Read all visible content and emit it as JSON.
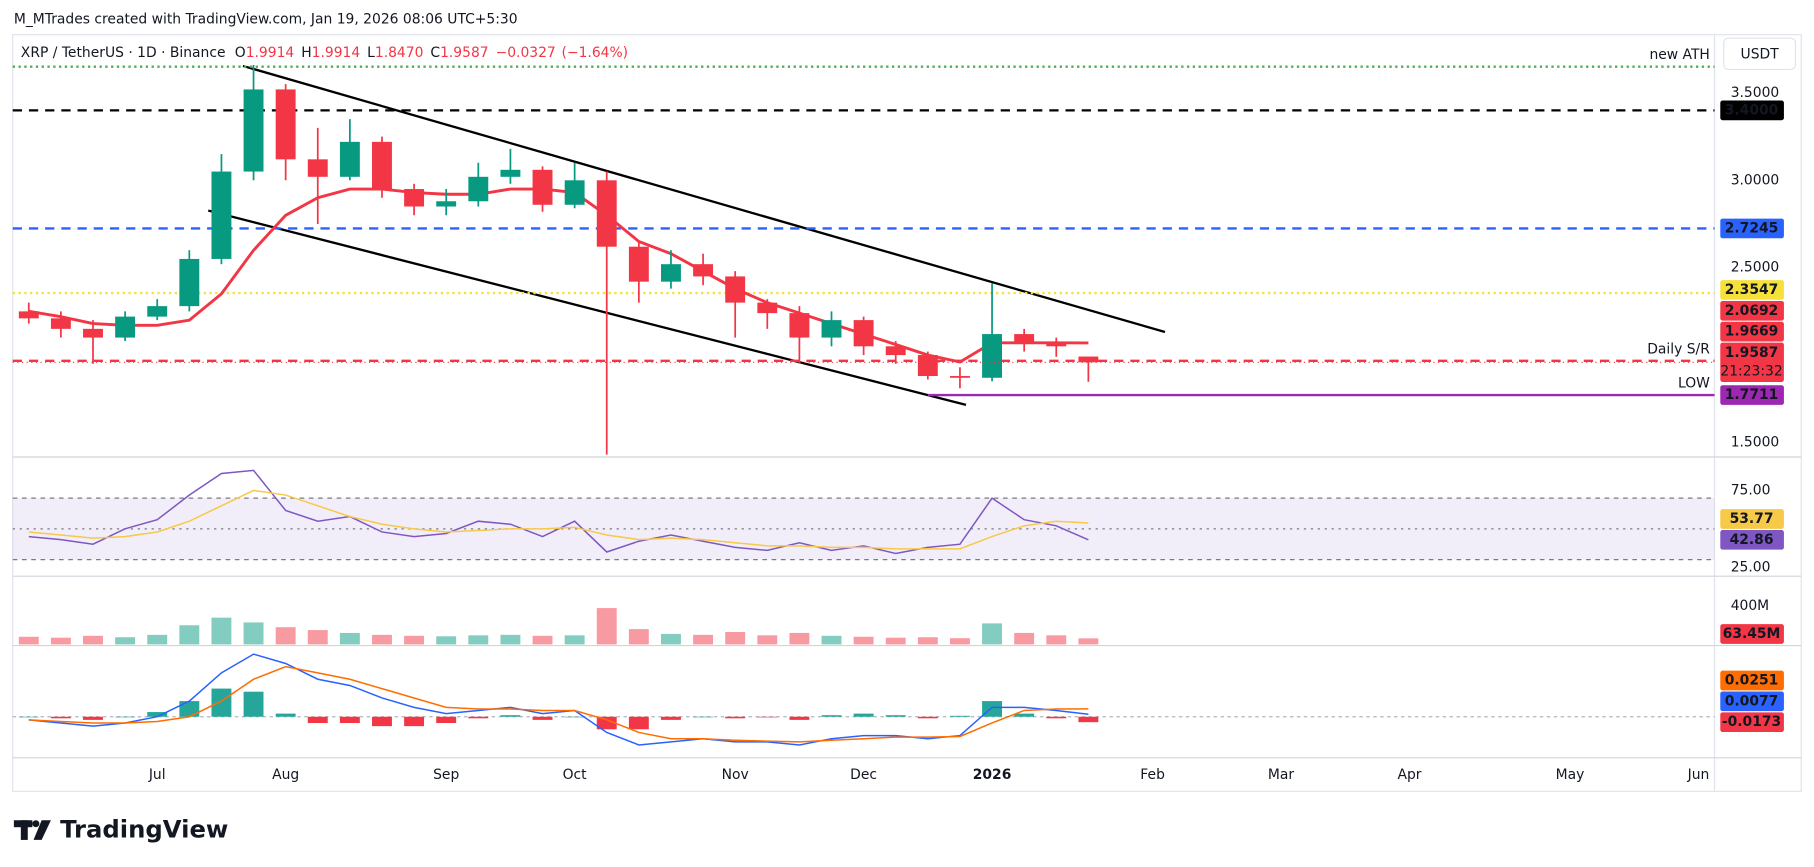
{
  "header": {
    "author": "M_MTrades created with TradingView.com, Jan 19, 2026 08:06 UTC+5:30",
    "symbol": "XRP / TetherUS · 1D · Binance",
    "ohlc": [
      {
        "key": "O",
        "value": 1.9914
      },
      {
        "key": "H",
        "value": 1.9914
      },
      {
        "key": "L",
        "value": {
          "value": 1.847,
          "label": "1.8470"
        }
      },
      {
        "key": "C",
        "value": 1.9587
      }
    ],
    "change": {
      "value": -0.0327,
      "label": "−0.0327"
    },
    "change_pct": {
      "value": -1.64,
      "label": "(−1.64%)"
    },
    "currency": "USDT"
  },
  "chart_data": [
    {
      "type": "candlestick",
      "categories": [
        null,
        null,
        null,
        null,
        "Jul",
        null,
        null,
        null,
        "Aug",
        null,
        null,
        null,
        null,
        "Sep",
        null,
        null,
        null,
        "Oct",
        null,
        null,
        null,
        null,
        "Nov",
        null,
        null,
        null,
        "Dec",
        null,
        null,
        null,
        "2026",
        null,
        null,
        null,
        null,
        "Feb",
        null,
        null,
        null,
        "Mar",
        null,
        null,
        null,
        "Apr",
        null,
        null,
        null,
        null,
        "May",
        null,
        null,
        null,
        "Jun"
      ],
      "open": [
        2.25,
        2.21,
        2.15,
        2.1,
        2.22,
        2.28,
        2.55,
        3.05,
        3.52,
        3.12,
        3.02,
        3.22,
        2.95,
        2.85,
        2.88,
        3.02,
        3.06,
        2.86,
        3.0,
        2.62,
        2.42,
        2.52,
        2.45,
        2.3,
        2.24,
        2.1,
        2.2,
        2.05,
        2.0,
        1.88,
        1.87,
        2.12,
        2.07,
        1.9914,
        null,
        null,
        null,
        null,
        null,
        null,
        null,
        null,
        null,
        null,
        null,
        null,
        null,
        null,
        null,
        null,
        null,
        null,
        null
      ],
      "high": [
        2.3,
        2.25,
        2.2,
        2.25,
        2.32,
        2.6,
        3.15,
        3.66,
        3.55,
        3.3,
        3.35,
        3.25,
        2.98,
        2.95,
        3.1,
        3.18,
        3.08,
        3.1,
        3.05,
        2.65,
        2.6,
        2.58,
        2.48,
        2.32,
        2.28,
        2.25,
        2.22,
        2.08,
        2.02,
        1.93,
        2.41,
        2.15,
        2.1,
        1.9914,
        null,
        null,
        null,
        null,
        null,
        null,
        null,
        null,
        null,
        null,
        null,
        null,
        null,
        null,
        null,
        null,
        null,
        null,
        null
      ],
      "low": [
        2.18,
        2.1,
        1.95,
        2.08,
        2.2,
        2.25,
        2.52,
        3.0,
        3.0,
        2.75,
        3.0,
        2.9,
        2.8,
        2.8,
        2.85,
        2.98,
        2.82,
        2.84,
        1.43,
        2.3,
        2.38,
        2.4,
        2.1,
        2.15,
        1.95,
        2.05,
        2.0,
        1.95,
        1.86,
        1.81,
        1.85,
        2.02,
        1.99,
        1.847,
        null,
        null,
        null,
        null,
        null,
        null,
        null,
        null,
        null,
        null,
        null,
        null,
        null,
        null,
        null,
        null,
        null,
        null,
        null
      ],
      "close": [
        2.21,
        2.15,
        2.1,
        2.22,
        2.28,
        2.55,
        3.05,
        3.52,
        3.12,
        3.02,
        3.22,
        2.95,
        2.85,
        2.88,
        3.02,
        3.06,
        2.86,
        3.0,
        2.62,
        2.42,
        2.52,
        2.45,
        2.3,
        2.24,
        2.1,
        2.2,
        2.05,
        2.0,
        1.88,
        1.87,
        2.12,
        2.07,
        2.05,
        1.9587,
        null,
        null,
        null,
        null,
        null,
        null,
        null,
        null,
        null,
        null,
        null,
        null,
        null,
        null,
        null,
        null,
        null,
        null,
        null
      ],
      "up_color": "#089981",
      "down_color": "#f23645",
      "series": [
        {
          "color": "#f23645",
          "values": [
            2.25,
            2.22,
            2.18,
            2.17,
            2.17,
            2.2,
            2.35,
            2.6,
            2.8,
            2.9,
            2.95,
            2.95,
            2.93,
            2.92,
            2.92,
            2.95,
            2.95,
            2.93,
            2.8,
            2.65,
            2.58,
            2.48,
            2.38,
            2.3,
            2.24,
            2.18,
            2.12,
            2.06,
            2.0,
            1.96,
            2.07,
            2.07,
            2.07,
            2.0692,
            null,
            null,
            null,
            null,
            null,
            null,
            null,
            null,
            null,
            null,
            null,
            null,
            null,
            null,
            null,
            null,
            null,
            null,
            null
          ]
        }
      ],
      "countdown": "21:23:32",
      "ylim": [
        1.43,
        3.8
      ],
      "yticks": [
        {
          "value": 3.5,
          "label": "3.5000"
        },
        {
          "value": 3.0,
          "label": "3.0000"
        },
        {
          "value": 2.5,
          "label": "2.5000"
        },
        {
          "value": 1.5,
          "label": "1.5000"
        }
      ],
      "levels": [
        {
          "value": 3.65,
          "text": "new ATH",
          "color": "#4caf50",
          "style": "dotted",
          "tag": false
        },
        {
          "value": 3.4,
          "label": "3.4000",
          "color": "#000000",
          "style": "dashed",
          "tag": true
        },
        {
          "value": 2.7245,
          "color": "#2962ff",
          "style": "dashed",
          "tag": true
        },
        {
          "value": 2.3547,
          "color": "#f5e13a",
          "style": "dotted",
          "tag": true
        },
        {
          "value": 1.9669,
          "text": "Daily S/R",
          "color": "#f23645",
          "style": "dashed",
          "tag": true
        },
        {
          "value": 1.7711,
          "text": "LOW",
          "color": "#9c27b0",
          "style": "solid",
          "tag": true
        }
      ]
    },
    {
      "type": "line",
      "series": [
        {
          "color": "#7e57c2",
          "values": [
            45,
            43,
            40,
            50,
            56,
            72,
            86,
            88,
            62,
            55,
            58,
            48,
            45,
            47,
            55,
            53,
            45,
            55,
            35,
            42,
            46,
            42,
            38,
            36,
            41,
            36,
            39,
            34,
            38,
            40,
            70,
            56,
            52,
            42.86,
            null,
            null,
            null,
            null,
            null,
            null,
            null,
            null,
            null,
            null,
            null,
            null,
            null,
            null,
            null,
            null,
            null,
            null,
            null
          ]
        },
        {
          "color": "#f7c948",
          "values": [
            48,
            46,
            44,
            45,
            48,
            55,
            65,
            75,
            72,
            65,
            58,
            53,
            50,
            48,
            49,
            50,
            50,
            51,
            46,
            43,
            44,
            43,
            41,
            39,
            39,
            38,
            38,
            37,
            37,
            37,
            45,
            52,
            55,
            53.77,
            null,
            null,
            null,
            null,
            null,
            null,
            null,
            null,
            null,
            null,
            null,
            null,
            null,
            null,
            null,
            null,
            null,
            null,
            null
          ]
        }
      ],
      "ylim": [
        20,
        96
      ],
      "yticks": [
        {
          "value": 75,
          "label": "75.00"
        },
        {
          "value": 25,
          "label": "25.00"
        }
      ],
      "band": [
        30,
        70
      ],
      "midline": 50
    },
    {
      "type": "bar",
      "values": [
        80,
        70,
        90,
        75,
        100,
        200,
        280,
        230,
        180,
        150,
        120,
        100,
        90,
        85,
        95,
        100,
        90,
        95,
        380,
        160,
        110,
        100,
        130,
        95,
        120,
        90,
        80,
        70,
        75,
        65,
        220,
        120,
        95,
        63.45,
        null,
        null,
        null,
        null,
        null,
        null,
        null,
        null,
        null,
        null,
        null,
        null,
        null,
        null,
        null,
        null,
        null,
        null,
        null
      ],
      "value_labels": [
        null,
        null,
        null,
        null,
        null,
        null,
        null,
        null,
        null,
        null,
        null,
        null,
        null,
        null,
        null,
        null,
        null,
        null,
        null,
        null,
        null,
        null,
        null,
        null,
        null,
        null,
        null,
        null,
        null,
        null,
        null,
        null,
        null,
        "63.45M",
        null,
        null,
        null,
        null,
        null,
        null,
        null,
        null,
        null,
        null,
        null,
        null,
        null,
        null,
        null,
        null,
        null,
        null,
        null
      ],
      "up_color": "rgba(8,153,129,0.5)",
      "down_color": "rgba(242,54,69,0.5)",
      "tag_color": "#f23645",
      "ylim": [
        0,
        690
      ],
      "yticks": [
        {
          "value": 400,
          "label": "400M"
        }
      ]
    },
    {
      "type": "macd",
      "series": [
        {
          "color": "#2962ff",
          "values": [
            -0.01,
            -0.02,
            -0.03,
            -0.02,
            0.0,
            0.05,
            0.14,
            0.2,
            0.17,
            0.12,
            0.1,
            0.06,
            0.03,
            0.01,
            0.02,
            0.03,
            0.01,
            0.02,
            -0.05,
            -0.09,
            -0.08,
            -0.07,
            -0.08,
            -0.08,
            -0.09,
            -0.07,
            -0.06,
            -0.06,
            -0.07,
            -0.06,
            0.03,
            0.03,
            0.02,
            0.0077,
            null,
            null,
            null,
            null,
            null,
            null,
            null,
            null,
            null,
            null,
            null,
            null,
            null,
            null,
            null,
            null,
            null,
            null,
            null
          ]
        },
        {
          "color": "#ff6d00",
          "values": [
            -0.01,
            -0.015,
            -0.02,
            -0.02,
            -0.015,
            0.0,
            0.05,
            0.12,
            0.16,
            0.14,
            0.12,
            0.09,
            0.06,
            0.03,
            0.025,
            0.025,
            0.02,
            0.02,
            -0.01,
            -0.05,
            -0.07,
            -0.07,
            -0.075,
            -0.078,
            -0.08,
            -0.075,
            -0.07,
            -0.065,
            -0.065,
            -0.063,
            -0.02,
            0.02,
            0.025,
            0.0251,
            null,
            null,
            null,
            null,
            null,
            null,
            null,
            null,
            null,
            null,
            null,
            null,
            null,
            null,
            null,
            null,
            null,
            null,
            null
          ]
        }
      ],
      "histogram": {
        "up_color": "#26a69a",
        "down_color": "#f23645",
        "values": [
          0,
          -0.005,
          -0.01,
          0,
          0.015,
          0.05,
          0.09,
          0.08,
          0.01,
          -0.02,
          -0.02,
          -0.03,
          -0.03,
          -0.02,
          -0.005,
          0.005,
          -0.01,
          0,
          -0.04,
          -0.04,
          -0.01,
          0,
          -0.005,
          -0.002,
          -0.01,
          0.005,
          0.01,
          0.005,
          -0.005,
          0.003,
          0.05,
          0.01,
          -0.005,
          -0.0173,
          null,
          null,
          null,
          null,
          null,
          null,
          null,
          null,
          null,
          null,
          null,
          null,
          null,
          null,
          null,
          null,
          null,
          null,
          null
        ]
      },
      "ylim": [
        -0.12,
        0.22
      ]
    }
  ],
  "footer": {
    "brand": "TradingView"
  }
}
